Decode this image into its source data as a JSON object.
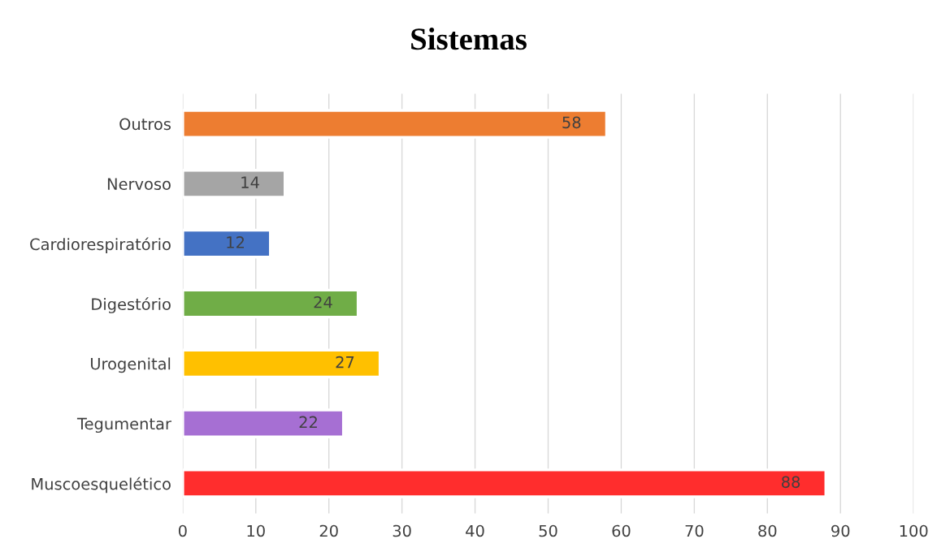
{
  "chart_data": {
    "type": "bar",
    "orientation": "horizontal",
    "title": "Sistemas",
    "categories": [
      "Outros",
      "Nervoso",
      "Cardiorespiratório",
      "Digestório",
      "Urogenital",
      "Tegumentar",
      "Muscoesquelético"
    ],
    "values": [
      58,
      14,
      12,
      24,
      27,
      22,
      88
    ],
    "colors": [
      "#ed7d31",
      "#a5a5a5",
      "#4472c4",
      "#70ad47",
      "#ffc000",
      "#a66fd3",
      "#ff2d2d"
    ],
    "xlim": [
      0,
      100
    ],
    "xticks": [
      0,
      10,
      20,
      30,
      40,
      50,
      60,
      70,
      80,
      90,
      100
    ],
    "grid": "x",
    "data_labels": true
  }
}
